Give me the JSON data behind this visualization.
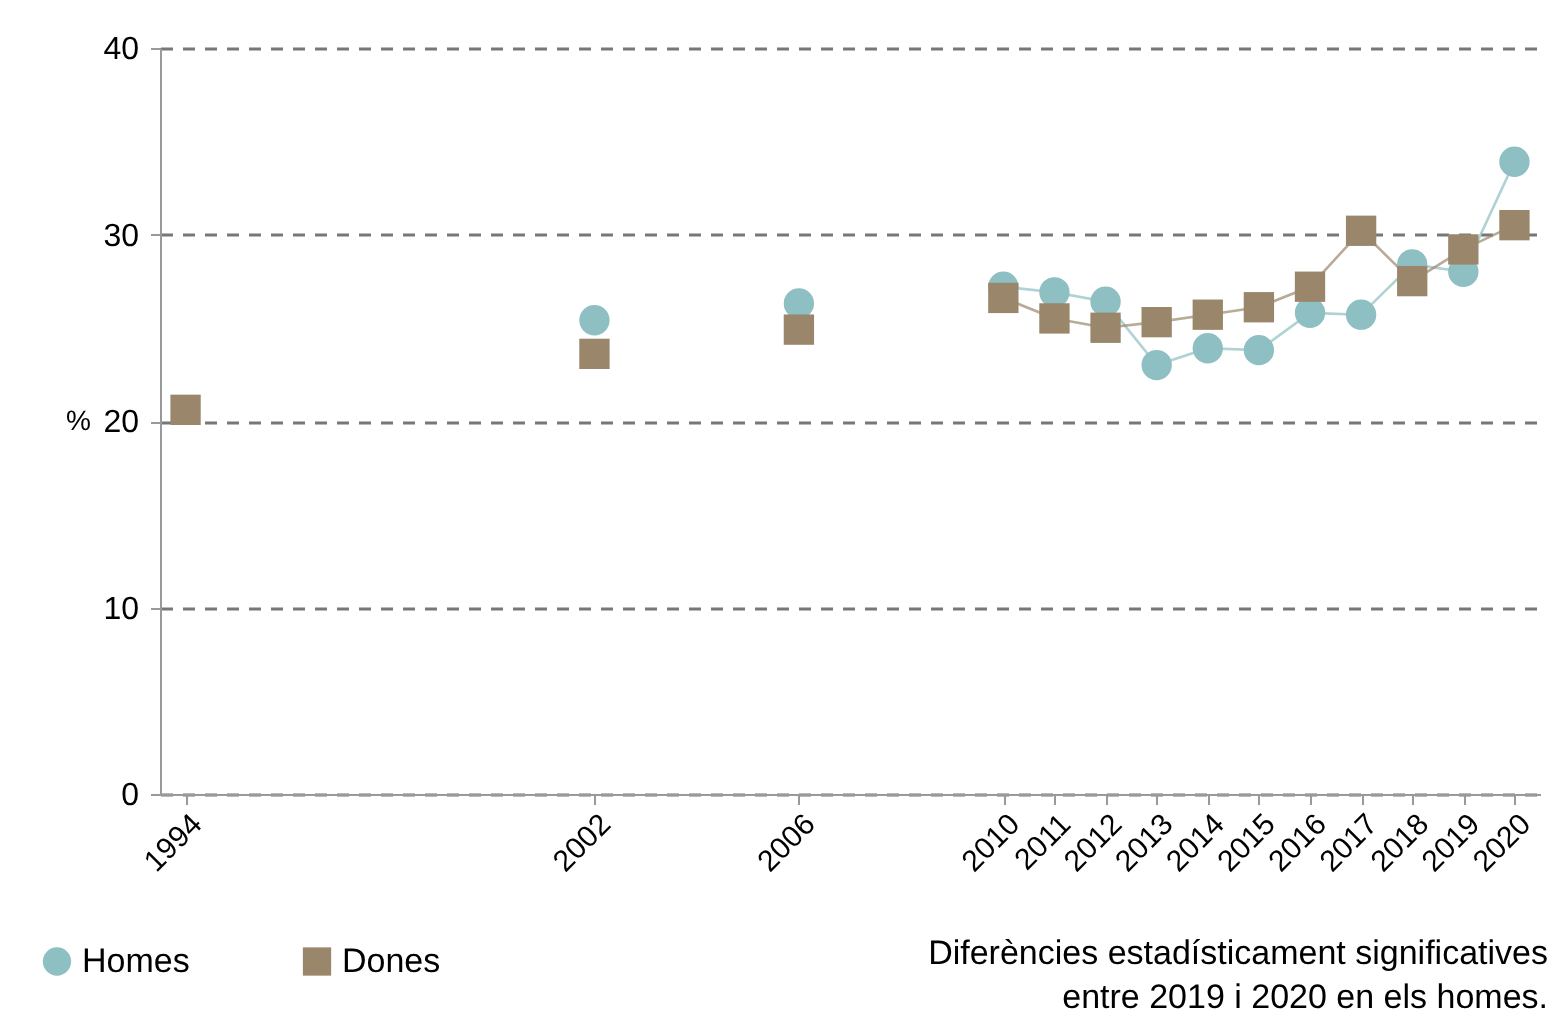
{
  "chart_data": {
    "type": "line",
    "ylabel": "%",
    "x": [
      1994,
      1995,
      1996,
      1997,
      1998,
      1999,
      2000,
      2001,
      2002,
      2003,
      2004,
      2005,
      2006,
      2007,
      2008,
      2009,
      2010,
      2011,
      2012,
      2013,
      2014,
      2015,
      2016,
      2017,
      2018,
      2019,
      2020
    ],
    "xlim": [
      1993.5,
      2020.5
    ],
    "xticks": [
      1994,
      2002,
      2006,
      2010,
      2011,
      2012,
      2013,
      2014,
      2015,
      2016,
      2017,
      2018,
      2019,
      2020
    ],
    "ylim": [
      0,
      40
    ],
    "yticks": [
      0,
      10,
      20,
      30,
      40
    ],
    "grid": "y",
    "legend": "bottom left",
    "line_style": "solid",
    "series": [
      {
        "name": "Homes",
        "color": "#8dbfc3",
        "marker": "circle",
        "values": [
          null,
          null,
          null,
          null,
          null,
          null,
          null,
          null,
          25.4,
          null,
          null,
          null,
          26.3,
          null,
          null,
          null,
          27.2,
          26.9,
          26.4,
          23.0,
          23.9,
          23.8,
          25.8,
          25.7,
          28.4,
          28.0,
          33.9
        ]
      },
      {
        "name": "Dones",
        "color": "#9a876b",
        "marker": "square",
        "values": [
          20.6,
          null,
          null,
          null,
          null,
          null,
          null,
          null,
          23.6,
          null,
          null,
          null,
          24.9,
          null,
          null,
          null,
          26.6,
          25.5,
          25.0,
          25.3,
          25.7,
          26.1,
          27.2,
          30.2,
          27.5,
          29.2,
          30.5
        ]
      }
    ],
    "annotations": [
      "Diferències estadísticament significatives\nentre 2019 i 2020 en els homes."
    ]
  }
}
